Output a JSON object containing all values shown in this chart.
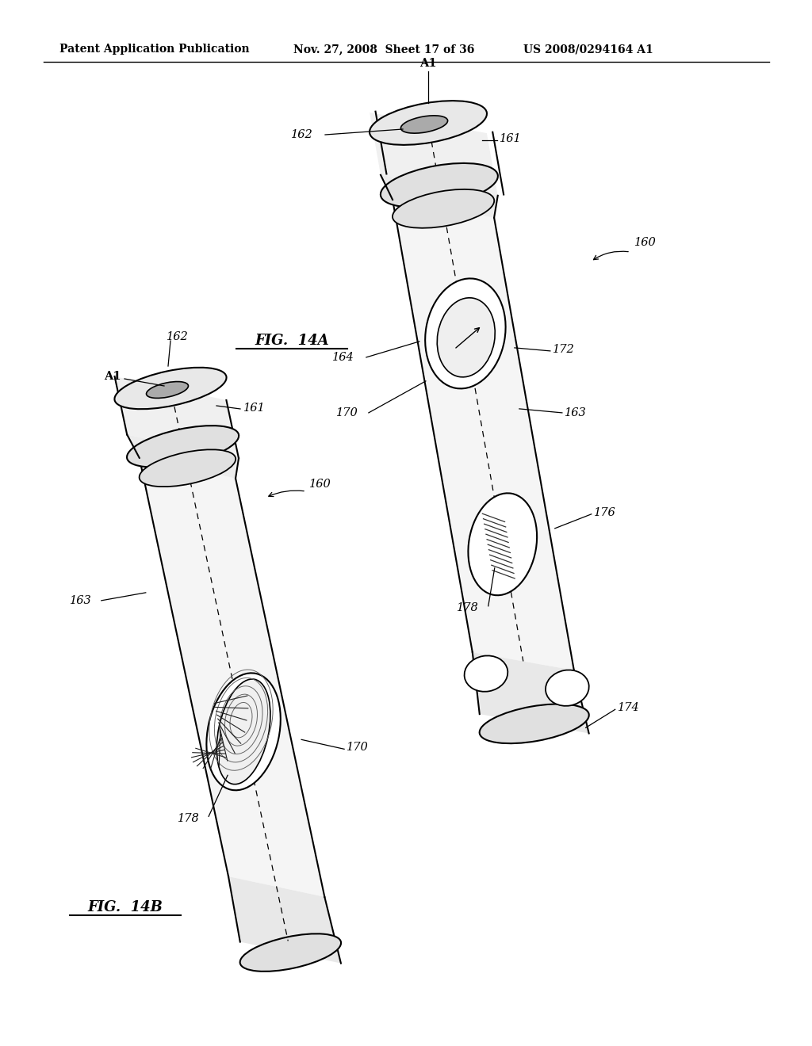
{
  "background_color": "#ffffff",
  "header_left": "Patent Application Publication",
  "header_mid": "Nov. 27, 2008  Sheet 17 of 36",
  "header_right": "US 2008/0294164 A1",
  "fig14a_label": "FIG.  14A",
  "fig14b_label": "FIG.  14B"
}
